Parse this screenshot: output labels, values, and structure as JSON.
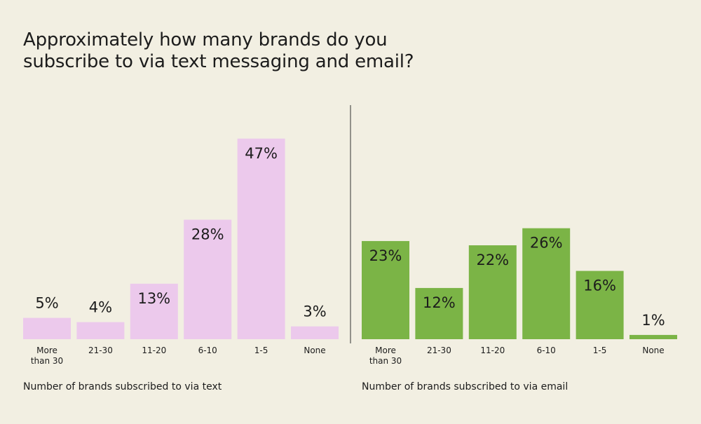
{
  "title_lines": [
    "Approximately how many brands do you",
    "subscribe to via text messaging and email?"
  ],
  "colors": {
    "background": "#f2efe2",
    "text_bar": "#ecc9ec",
    "email_bar": "#7bb446",
    "divider": "#333333"
  },
  "chart_data": [
    {
      "type": "bar",
      "categories": [
        "More than 30",
        "21-30",
        "11-20",
        "6-10",
        "1-5",
        "None"
      ],
      "values": [
        5,
        4,
        13,
        28,
        47,
        3
      ],
      "value_suffix": "%",
      "xlabel": "Number of brands subscribed to via text",
      "ylabel": "",
      "ylim": [
        0,
        50
      ],
      "grid": false,
      "color": "#ecc9ec"
    },
    {
      "type": "bar",
      "categories": [
        "More than 30",
        "21-30",
        "11-20",
        "6-10",
        "1-5",
        "None"
      ],
      "values": [
        23,
        12,
        22,
        26,
        16,
        1
      ],
      "value_suffix": "%",
      "xlabel": "Number of brands subscribed to via email",
      "ylabel": "",
      "ylim": [
        0,
        50
      ],
      "grid": false,
      "color": "#7bb446"
    }
  ]
}
